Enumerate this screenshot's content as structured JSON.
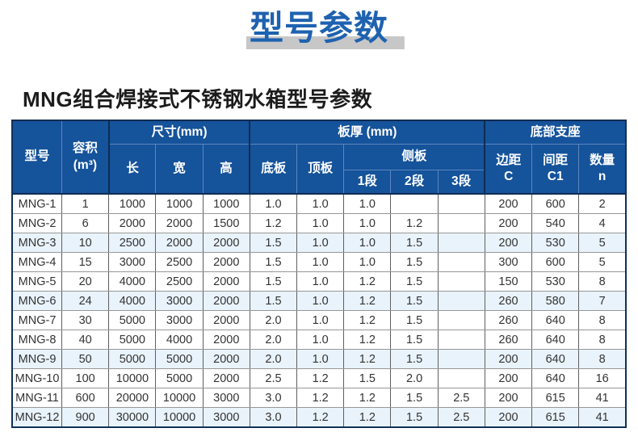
{
  "page": {
    "title": "型号参数",
    "subtitle": "MNG组合焊接式不锈钢水箱型号参数"
  },
  "colors": {
    "title_blue": "#1e62b0",
    "title_shadow_gray": "#c7c7c7",
    "header_bg_blue": "#15539b",
    "header_border_light": "#5d87bd",
    "group_separator_navy": "#0e2c52",
    "zebra_row_tint": "#e9f3fb"
  },
  "table": {
    "header": {
      "model": "型号",
      "volume": "容积\n(m³)",
      "dimensions_group": "尺寸(mm)",
      "length": "长",
      "width": "宽",
      "height": "高",
      "thickness_group": "板厚 (mm)",
      "bottom_plate": "底板",
      "top_plate": "顶板",
      "side_plate_group": "侧板",
      "seg1": "1段",
      "seg2": "2段",
      "seg3": "3段",
      "support_group": "底部支座",
      "edge_c": "边距\nC",
      "spacing_c1": "间距\nC1",
      "qty_n": "数量\nn"
    },
    "rows": [
      [
        "MNG-1",
        "1",
        "1000",
        "1000",
        "1000",
        "1.0",
        "1.0",
        "1.0",
        "",
        "",
        "200",
        "600",
        "2"
      ],
      [
        "MNG-2",
        "6",
        "2000",
        "2000",
        "1500",
        "1.2",
        "1.0",
        "1.0",
        "1.2",
        "",
        "200",
        "540",
        "4"
      ],
      [
        "MNG-3",
        "10",
        "2500",
        "2000",
        "2000",
        "1.5",
        "1.0",
        "1.0",
        "1.5",
        "",
        "200",
        "530",
        "5"
      ],
      [
        "MNG-4",
        "15",
        "3000",
        "2500",
        "2000",
        "1.5",
        "1.0",
        "1.0",
        "1.5",
        "",
        "300",
        "600",
        "5"
      ],
      [
        "MNG-5",
        "20",
        "4000",
        "2500",
        "2000",
        "1.5",
        "1.0",
        "1.2",
        "1.5",
        "",
        "150",
        "530",
        "8"
      ],
      [
        "MNG-6",
        "24",
        "4000",
        "3000",
        "2000",
        "1.5",
        "1.0",
        "1.2",
        "1.5",
        "",
        "260",
        "580",
        "7"
      ],
      [
        "MNG-7",
        "30",
        "5000",
        "3000",
        "2000",
        "2.0",
        "1.0",
        "1.2",
        "1.5",
        "",
        "260",
        "640",
        "8"
      ],
      [
        "MNG-8",
        "40",
        "5000",
        "4000",
        "2000",
        "2.0",
        "1.0",
        "1.2",
        "1.5",
        "",
        "260",
        "640",
        "8"
      ],
      [
        "MNG-9",
        "50",
        "5000",
        "5000",
        "2000",
        "2.0",
        "1.0",
        "1.2",
        "1.5",
        "",
        "200",
        "640",
        "8"
      ],
      [
        "MNG-10",
        "100",
        "10000",
        "5000",
        "2000",
        "2.5",
        "1.2",
        "1.5",
        "2.0",
        "",
        "200",
        "640",
        "16"
      ],
      [
        "MNG-11",
        "600",
        "20000",
        "10000",
        "3000",
        "3.0",
        "1.2",
        "1.2",
        "1.5",
        "2.5",
        "200",
        "615",
        "41"
      ],
      [
        "MNG-12",
        "900",
        "30000",
        "10000",
        "3000",
        "3.0",
        "1.2",
        "1.2",
        "1.5",
        "2.5",
        "200",
        "615",
        "41"
      ]
    ]
  }
}
